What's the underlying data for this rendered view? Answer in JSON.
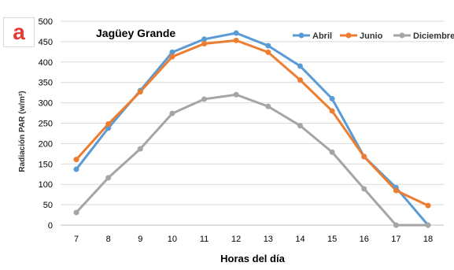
{
  "panel_label": "a",
  "chart_data": {
    "type": "line",
    "title": "Jagüey Grande",
    "xlabel": "Horas del día",
    "ylabel": "Radiación PAR (w/m²)",
    "x": [
      7,
      8,
      9,
      10,
      11,
      12,
      13,
      14,
      15,
      16,
      17,
      18
    ],
    "xlim": [
      7,
      18
    ],
    "ylim": [
      0,
      500
    ],
    "yticks": [
      0,
      50,
      100,
      150,
      200,
      250,
      300,
      350,
      400,
      450,
      500
    ],
    "grid": "horizontal",
    "legend": "top-right",
    "series": [
      {
        "name": "Abril",
        "color": "#5b9bd5",
        "values": [
          137,
          238,
          330,
          424,
          456,
          471,
          440,
          390,
          310,
          168,
          92,
          0
        ]
      },
      {
        "name": "Junio",
        "color": "#ed7d31",
        "values": [
          161,
          248,
          327,
          413,
          445,
          453,
          424,
          356,
          280,
          168,
          85,
          48
        ]
      },
      {
        "name": "Diciembre",
        "color": "#a5a5a5",
        "values": [
          31,
          116,
          187,
          274,
          309,
          320,
          291,
          244,
          179,
          89,
          0,
          0
        ]
      }
    ]
  }
}
